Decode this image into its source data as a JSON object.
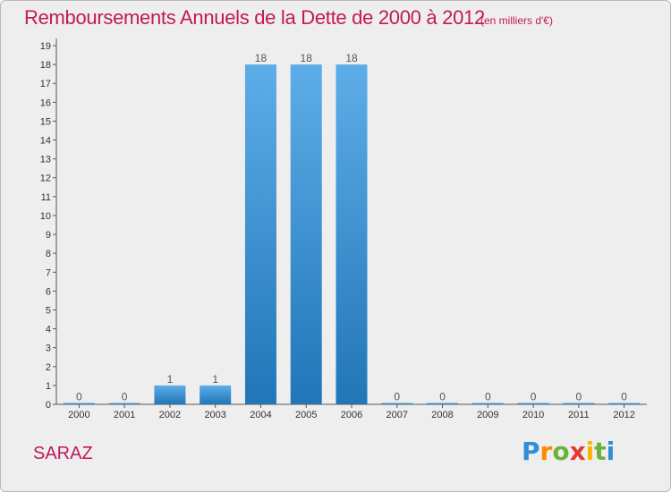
{
  "chart_data": {
    "type": "bar",
    "title": "Remboursements Annuels de la Dette de 2000 à 2012",
    "unit": "(en milliers d'€)",
    "xlabel": "",
    "ylabel": "",
    "categories": [
      "2000",
      "2001",
      "2002",
      "2003",
      "2004",
      "2005",
      "2006",
      "2007",
      "2008",
      "2009",
      "2010",
      "2011",
      "2012"
    ],
    "values": [
      0,
      0,
      1,
      1,
      18,
      18,
      18,
      0,
      0,
      0,
      0,
      0,
      0
    ],
    "value_labels": [
      "0",
      "0",
      "1",
      "1",
      "18",
      "18",
      "18",
      "0",
      "0",
      "0",
      "0",
      "0",
      "0"
    ],
    "ylim": [
      0,
      19
    ],
    "yticks": [
      "0",
      "1",
      "2",
      "3",
      "4",
      "5",
      "6",
      "7",
      "8",
      "9",
      "10",
      "11",
      "12",
      "13",
      "14",
      "15",
      "16",
      "17",
      "18",
      "19"
    ],
    "grid": false,
    "colors": {
      "bar_top": "#5dade8",
      "bar_bottom": "#2176b8",
      "title": "#c2185b"
    }
  },
  "place_name": "SARAZ",
  "logo": {
    "letters": [
      "P",
      "r",
      "o",
      "x",
      "i",
      "t",
      "i"
    ],
    "colors": [
      "#2d8fd5",
      "#ff8a00",
      "#6bb33a",
      "#e53935",
      "#ffb300",
      "#6bb33a",
      "#2d8fd5"
    ]
  }
}
